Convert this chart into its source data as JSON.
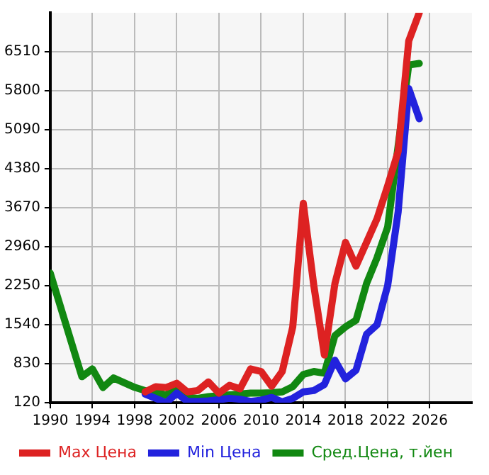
{
  "chart_data": {
    "type": "line",
    "x": [
      1990,
      1993,
      1994,
      1995,
      1996,
      1998,
      1999,
      2000,
      2001,
      2002,
      2003,
      2004,
      2005,
      2006,
      2007,
      2008,
      2009,
      2010,
      2011,
      2012,
      2013,
      2014,
      2015,
      2016,
      2017,
      2018,
      2019,
      2020,
      2021,
      2022,
      2023,
      2024,
      2025
    ],
    "series": [
      {
        "name": "Max Цена",
        "color": "#dd2222",
        "values": [
          null,
          null,
          null,
          null,
          null,
          null,
          317,
          412,
          396,
          475,
          317,
          341,
          499,
          294,
          436,
          372,
          735,
          688,
          420,
          688,
          1500,
          3750,
          2250,
          988,
          2290,
          3039,
          2605,
          3039,
          3473,
          4065,
          4696,
          6707,
          7220
        ]
      },
      {
        "name": "Min Цена",
        "color": "#2222dd",
        "values": [
          null,
          null,
          null,
          null,
          null,
          null,
          278,
          199,
          120,
          294,
          144,
          144,
          152,
          175,
          199,
          183,
          144,
          167,
          215,
          136,
          199,
          317,
          341,
          451,
          893,
          554,
          712,
          1367,
          1540,
          2250,
          3600,
          5840,
          5290
        ]
      },
      {
        "name": "Сред.Цена, т.йен",
        "color": "#118811",
        "values": [
          2480,
          593,
          735,
          396,
          570,
          400,
          340,
          317,
          254,
          436,
          222,
          199,
          230,
          246,
          262,
          278,
          294,
          294,
          301,
          317,
          412,
          633,
          688,
          657,
          1343,
          1500,
          1620,
          2290,
          2763,
          3316,
          4800,
          6270,
          6297
        ]
      }
    ],
    "xlim": [
      1990,
      2030
    ],
    "xticks": [
      1990,
      1994,
      1998,
      2002,
      2006,
      2010,
      2014,
      2018,
      2022,
      2026
    ],
    "ylim": [
      120,
      7220
    ],
    "yticks": [
      120,
      830,
      1540,
      2250,
      2960,
      3670,
      4380,
      5090,
      5800,
      6510
    ],
    "grid": true,
    "legend": "bottom",
    "marker": "none",
    "line_style": "solid"
  }
}
